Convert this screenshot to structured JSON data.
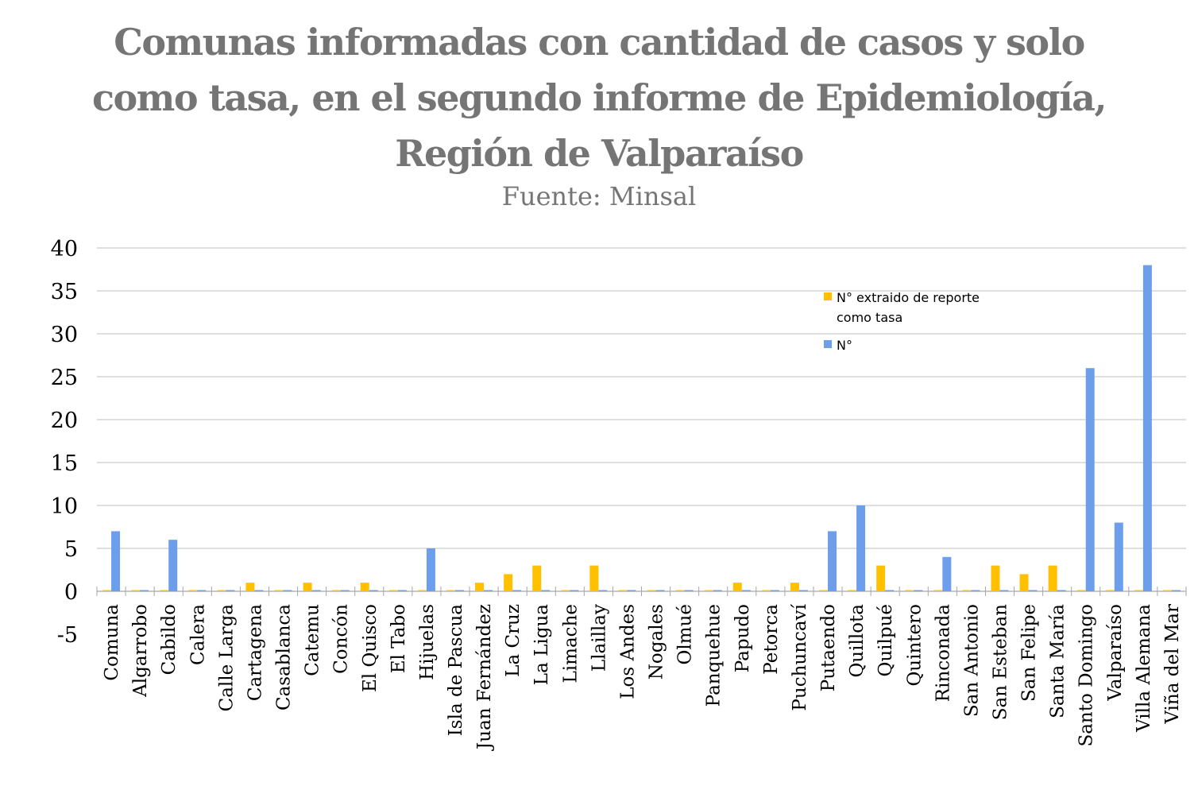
{
  "chart_data": {
    "type": "bar",
    "title_lines": [
      "Comunas informadas con cantidad de casos y solo",
      "como tasa, en el segundo informe de Epidemiología,",
      "Región de Valparaíso"
    ],
    "subtitle": "Fuente: Minsal",
    "ylim": [
      -5,
      40
    ],
    "yticks": [
      40,
      35,
      30,
      25,
      20,
      15,
      10,
      5,
      0,
      -5
    ],
    "grid": true,
    "legend_position": "top-right",
    "categories": [
      "Comuna",
      "Algarrobo",
      "Cabildo",
      "Calera",
      "Calle Larga",
      "Cartagena",
      "Casablanca",
      "Catemu",
      "Concón",
      "El Quisco",
      "El Tabo",
      "Hijuelas",
      "Isla de Pascua",
      "Juan Fernández",
      "La Cruz",
      "La Ligua",
      "Limache",
      "Llaillay",
      "Los Andes",
      "Nogales",
      "Olmué",
      "Panquehue",
      "Papudo",
      "Petorca",
      "Puchuncaví",
      "Putaendo",
      "Quillota",
      "Quilpué",
      "Quintero",
      "Rinconada",
      "San Antonio",
      "San Esteban",
      "San Felipe",
      "Santa María",
      "Santo Domingo",
      "Valparaíso",
      "Villa Alemana",
      "Viña del Mar"
    ],
    "series": [
      {
        "name": "N°  extraido de reporte como tasa",
        "color": "#FFC000",
        "values": [
          0,
          0,
          0,
          0,
          0,
          1,
          0,
          1,
          0,
          1,
          0,
          0,
          0,
          1,
          2,
          3,
          0,
          3,
          0,
          0,
          0,
          0,
          1,
          0,
          1,
          0,
          0,
          3,
          0,
          0,
          0,
          3,
          2,
          3,
          0,
          0,
          0,
          0
        ]
      },
      {
        "name": "N°",
        "color": "#6D9EEB",
        "values": [
          7,
          0,
          6,
          0,
          0,
          0,
          0,
          0,
          0,
          0,
          0,
          5,
          0,
          0,
          0,
          0,
          0,
          0,
          0,
          0,
          0,
          0,
          0,
          0,
          0,
          7,
          10,
          0,
          0,
          4,
          0,
          0,
          0,
          0,
          26,
          8,
          38,
          0
        ]
      }
    ],
    "legend": [
      {
        "label_lines": [
          "N°  extraido de reporte",
          "como tasa"
        ],
        "color": "#FFC000"
      },
      {
        "label_lines": [
          "N°"
        ],
        "color": "#6D9EEB"
      }
    ]
  }
}
